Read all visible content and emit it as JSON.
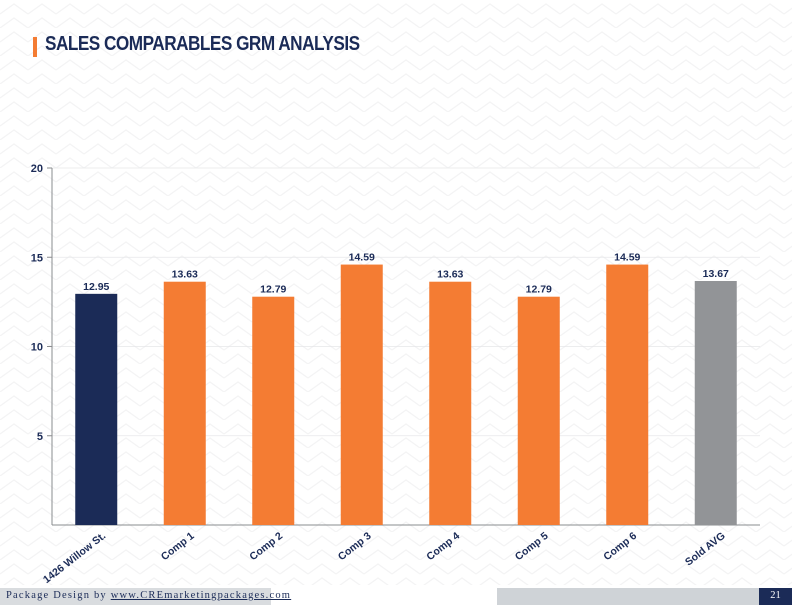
{
  "page": {
    "title": "SALES COMPARABLES GRM ANALYSIS",
    "footer_prefix": "Package Design by ",
    "footer_link": "www.CREmarketingpackages.com",
    "page_number": "21"
  },
  "colors": {
    "accent": "#f47c33",
    "navy": "#1b2b57",
    "gray": "#929497",
    "footer_gray": "#d9dcdf"
  },
  "chart_data": {
    "type": "bar",
    "title": "",
    "xlabel": "",
    "ylabel": "",
    "ylim": [
      0,
      20
    ],
    "yticks": [
      5,
      10,
      15,
      20
    ],
    "categories": [
      "1426 Willow St.",
      "Comp 1",
      "Comp 2",
      "Comp 3",
      "Comp 4",
      "Comp 5",
      "Comp 6",
      "Sold AVG"
    ],
    "values": [
      12.95,
      13.63,
      12.79,
      14.59,
      13.63,
      12.79,
      14.59,
      13.67
    ],
    "value_labels": [
      "12.95",
      "13.63",
      "12.79",
      "14.59",
      "13.63",
      "12.79",
      "14.59",
      "13.67"
    ],
    "bar_colors": [
      "#1b2b57",
      "#f47c33",
      "#f47c33",
      "#f47c33",
      "#f47c33",
      "#f47c33",
      "#f47c33",
      "#929497"
    ],
    "grid": true,
    "legend": "none"
  }
}
